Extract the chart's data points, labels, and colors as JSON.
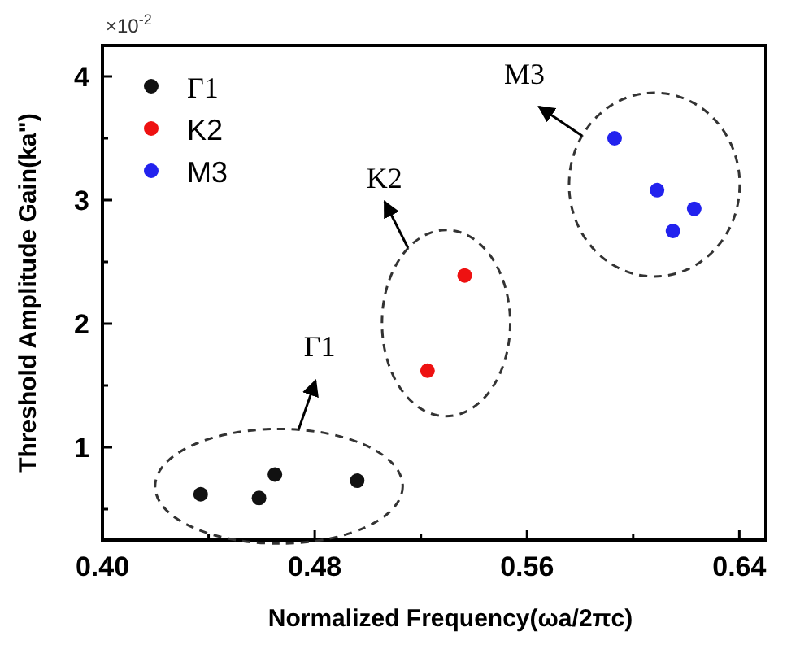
{
  "chart_data": {
    "type": "scatter",
    "xlabel": "Normalized Frequency(ωa/2πc)",
    "ylabel": "Threshold Amplitude Gain(ka\")",
    "xlim": [
      0.4,
      0.65
    ],
    "ylim": [
      0.25,
      4.25
    ],
    "xticks": [
      {
        "value": 0.4,
        "label": "0.40"
      },
      {
        "value": 0.44,
        "label": null
      },
      0.48,
      {
        "value": 0.52,
        "label": null
      },
      0.56,
      {
        "value": 0.6,
        "label": null
      },
      0.64
    ],
    "yticks": [
      {
        "value": 0.5,
        "label": null
      },
      1,
      {
        "value": 1.5,
        "label": null
      },
      2,
      {
        "value": 2.5,
        "label": null
      },
      3,
      {
        "value": 3.5,
        "label": null
      },
      4
    ],
    "marker": "circle",
    "legend": "top left",
    "grid": false,
    "series": [
      {
        "name": "Γ1",
        "color": "#111111",
        "x": [
          0.437,
          0.459,
          0.465,
          0.496
        ],
        "values": [
          0.62,
          0.59,
          0.78,
          0.73
        ]
      },
      {
        "name": "K2",
        "color": "#ee1111",
        "x": [
          0.5225,
          0.5365
        ],
        "values": [
          1.62,
          2.39
        ]
      },
      {
        "name": "M3",
        "color": "#2222ee",
        "x": [
          0.593,
          0.609,
          0.623,
          0.615
        ],
        "values": [
          3.5,
          3.08,
          2.93,
          2.75
        ]
      }
    ],
    "annotations": [
      "×10$^{-2}$",
      "Γ1",
      "K2",
      "M3"
    ]
  }
}
